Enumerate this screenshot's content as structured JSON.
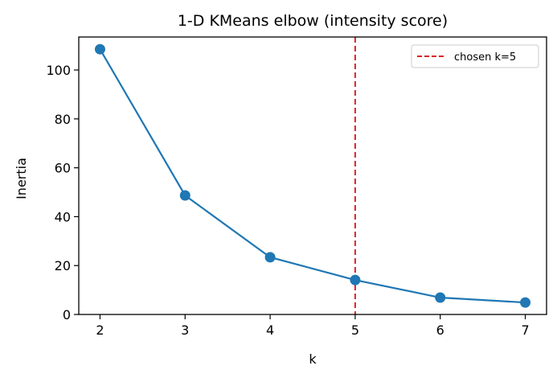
{
  "chart_data": {
    "type": "line",
    "title": "1-D KMeans elbow (intensity score)",
    "xlabel": "k",
    "ylabel": "Inertia",
    "x": [
      2,
      3,
      4,
      5,
      6,
      7
    ],
    "series": [
      {
        "name": "inertia",
        "values": [
          108.5,
          48.7,
          23.4,
          14.1,
          6.9,
          4.9
        ],
        "color": "#1f77b4",
        "marker": "circle"
      }
    ],
    "xticks": [
      "2",
      "3",
      "4",
      "5",
      "6",
      "7"
    ],
    "yticks": [
      "0",
      "20",
      "40",
      "60",
      "80",
      "100"
    ],
    "xlim": [
      1.75,
      7.25
    ],
    "ylim": [
      0,
      113.5
    ],
    "grid": false,
    "annotations": [
      {
        "type": "vline",
        "x": 5,
        "style": "dashed",
        "color": "#d62728",
        "label": "chosen k=5"
      }
    ],
    "legend": {
      "position": "upper right",
      "entries": [
        "chosen k=5"
      ]
    }
  }
}
